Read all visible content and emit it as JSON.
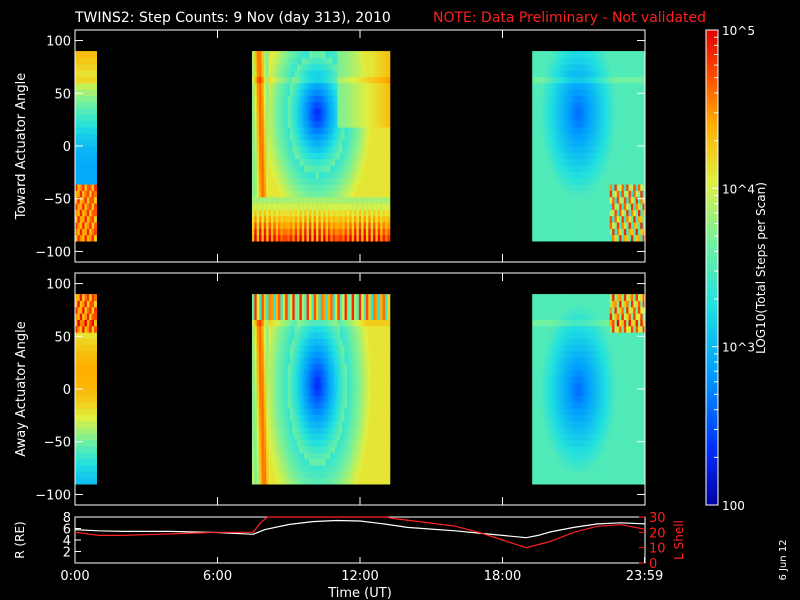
{
  "title": {
    "main": "TWINS2: Step Counts:  9 Nov (day 313), 2010",
    "note": "NOTE: Data Preliminary - Not validated"
  },
  "colors": {
    "note": "#ff2020",
    "r_line": "#ffffff",
    "lshell_line": "#ff2020",
    "background": "#000000"
  },
  "side_date": "6 Jun 12",
  "colorbar": {
    "label": "LOG10(Total Steps per Scan)",
    "scale": "log",
    "range": [
      100,
      100000
    ],
    "ticks": [
      {
        "value": 100000,
        "label": "10^5"
      },
      {
        "value": 10000,
        "label": "10^4"
      },
      {
        "value": 1000,
        "label": "10^3"
      },
      {
        "value": 100,
        "label": "100"
      }
    ],
    "colormap": [
      "#0000a0",
      "#0030ff",
      "#00a0ff",
      "#20e0e0",
      "#70f0a0",
      "#e0f040",
      "#ffb000",
      "#ff5000",
      "#e00000"
    ]
  },
  "chart_data": [
    {
      "type": "heatmap",
      "panel": "toward",
      "ylabel": "Toward Actuator Angle",
      "xlim": [
        0,
        24
      ],
      "ylim": [
        -110,
        110
      ],
      "yticks": [
        100,
        50,
        0,
        -50,
        -100
      ],
      "data_y_range": [
        -90,
        90
      ],
      "data_blocks": [
        {
          "start": 0.0,
          "end": 0.9
        },
        {
          "start": 7.45,
          "end": 13.25
        },
        {
          "start": 19.25,
          "end": 24.0
        }
      ]
    },
    {
      "type": "heatmap",
      "panel": "away",
      "ylabel": "Away Actuator Angle",
      "xlim": [
        0,
        24
      ],
      "ylim": [
        -110,
        110
      ],
      "yticks": [
        100,
        50,
        0,
        -50,
        -100
      ],
      "data_y_range": [
        -90,
        90
      ],
      "data_blocks": [
        {
          "start": 0.0,
          "end": 0.9
        },
        {
          "start": 7.45,
          "end": 13.25
        },
        {
          "start": 19.25,
          "end": 24.0
        }
      ]
    },
    {
      "type": "line",
      "panel": "orbit",
      "xlabel": "Time (UT)",
      "ylabel_left": "R (RE)",
      "ylabel_right": "L Shell",
      "xlim": [
        0,
        24
      ],
      "ylim_left": [
        0,
        8
      ],
      "yticks_left": [
        8,
        6,
        4,
        2
      ],
      "ylim_right": [
        0,
        30
      ],
      "yticks_right": [
        30,
        20,
        10,
        0
      ],
      "xticks": [
        {
          "value": 0,
          "label": "0:00"
        },
        {
          "value": 6,
          "label": "6:00"
        },
        {
          "value": 12,
          "label": "12:00"
        },
        {
          "value": 18,
          "label": "18:00"
        },
        {
          "value": 23.98,
          "label": "23:59"
        }
      ],
      "series": [
        {
          "name": "R (RE)",
          "axis": "left",
          "x": [
            0,
            1,
            2,
            3,
            4,
            5,
            6,
            7,
            7.5,
            8,
            9,
            10,
            11,
            12,
            13,
            14,
            15,
            16,
            17,
            18,
            19,
            19.5,
            20,
            21,
            22,
            23,
            24
          ],
          "y": [
            5.8,
            5.6,
            5.5,
            5.5,
            5.5,
            5.4,
            5.3,
            5.1,
            5.0,
            5.8,
            6.7,
            7.2,
            7.4,
            7.3,
            6.8,
            6.2,
            5.9,
            5.6,
            5.2,
            4.8,
            4.4,
            4.8,
            5.4,
            6.2,
            6.8,
            7.0,
            6.8
          ]
        },
        {
          "name": "L Shell",
          "axis": "right",
          "x": [
            0,
            1,
            2,
            3,
            4,
            5,
            6,
            7,
            7.5,
            7.8,
            8.1,
            13.1,
            13.4,
            15,
            16,
            17,
            18,
            19,
            20,
            21,
            22,
            23,
            24
          ],
          "y": [
            20,
            18,
            18,
            18.5,
            19,
            19.5,
            20,
            20,
            20,
            26,
            30,
            30,
            29,
            26,
            24,
            20,
            15,
            10,
            14,
            20,
            24,
            25,
            22
          ]
        }
      ]
    }
  ]
}
